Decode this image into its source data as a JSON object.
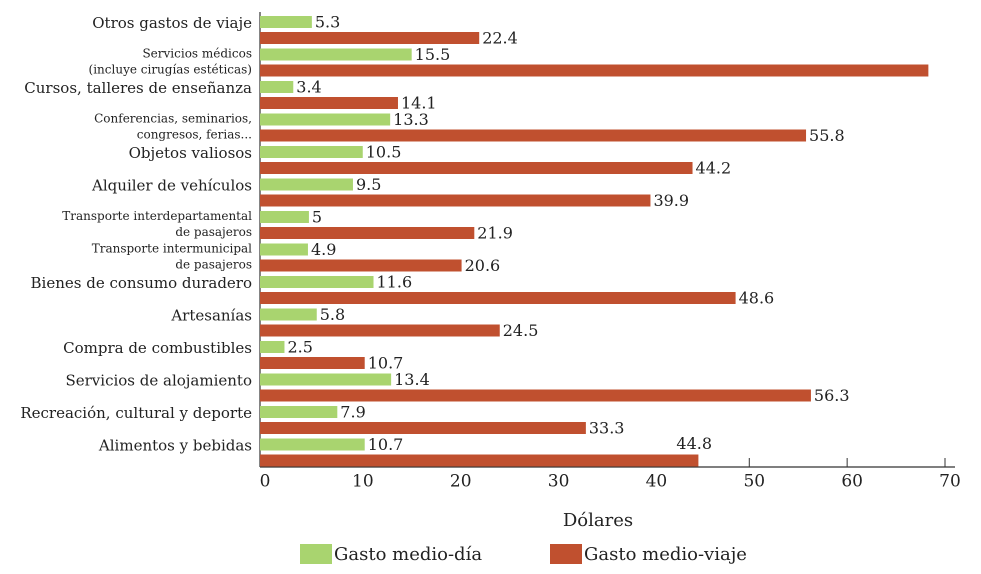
{
  "chart_data": {
    "type": "bar",
    "orientation": "horizontal",
    "categories": [
      "Otros gastos de viaje",
      "Servicios médicos\n(incluye cirugías estéticas)",
      "Cursos, talleres de enseñanza",
      "Conferencias, seminarios,\ncongresos, ferias...",
      "Objetos valiosos",
      "Alquiler de vehículos",
      "Transporte interdepartamental\nde pasajeros",
      "Transporte intermunicipal\nde pasajeros",
      "Bienes de consumo duradero",
      "Artesanías",
      "Compra de combustibles",
      "Servicios de alojamiento",
      "Recreación, cultural y deporte",
      "Alimentos y bebidas"
    ],
    "series": [
      {
        "name": "Gasto medio-día",
        "color": "#a9d46f",
        "values": [
          5.3,
          15.5,
          3.4,
          13.3,
          10.5,
          9.5,
          5,
          4.9,
          11.6,
          5.8,
          2.5,
          13.4,
          7.9,
          10.7
        ]
      },
      {
        "name": "Gasto medio-viaje",
        "color": "#c0502f",
        "values": [
          22.4,
          68.3,
          14.1,
          55.8,
          44.2,
          39.9,
          21.9,
          20.6,
          48.6,
          24.5,
          10.7,
          56.3,
          33.3,
          44.8
        ],
        "labeled": [
          true,
          false,
          true,
          true,
          true,
          true,
          true,
          true,
          true,
          true,
          true,
          true,
          true,
          true
        ]
      }
    ],
    "x_label": "Dólares",
    "xlim": [
      0,
      70
    ],
    "xticks": [
      0,
      10,
      20,
      30,
      40,
      50,
      60,
      70
    ]
  }
}
